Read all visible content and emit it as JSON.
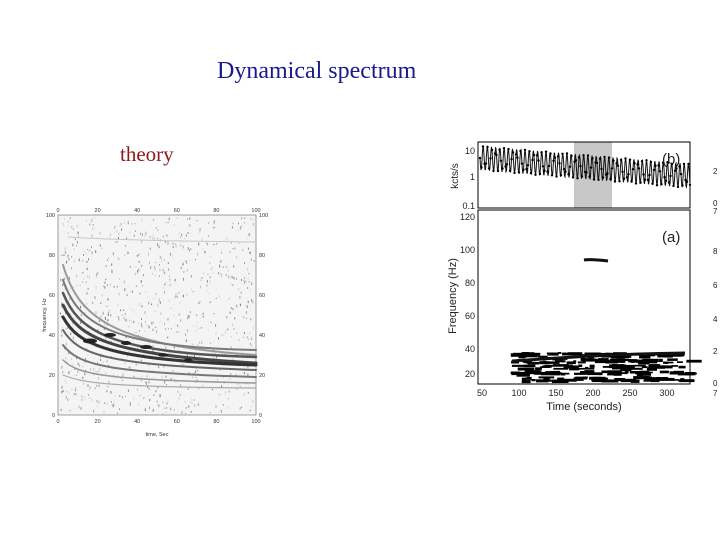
{
  "slide": {
    "title": "Dynamical spectrum",
    "left_caption": "theory"
  },
  "left_figure": {
    "x_ticks_top": [
      "0",
      "20",
      "40",
      "60",
      "80",
      "100"
    ],
    "x_ticks_bottom": [
      "0",
      "20",
      "40",
      "60",
      "80",
      "100"
    ],
    "y_ticks_left": [
      "100",
      "80",
      "60",
      "40",
      "20",
      "0"
    ],
    "y_ticks_right": [
      "100",
      "80",
      "60",
      "40",
      "20",
      "0"
    ],
    "xlabel": "time, Sec",
    "ylabel": "frequency, Hz"
  },
  "right_figure": {
    "top_panel": {
      "label": "(b)",
      "ylabel": "kcts/s",
      "y_ticks": [
        "10",
        "1",
        "0.1"
      ]
    },
    "bottom_panel": {
      "label": "(a)",
      "ylabel": "Frequency (Hz)",
      "y_ticks": [
        "120",
        "100",
        "80",
        "60",
        "40",
        "20"
      ],
      "x_ticks": [
        "50",
        "100",
        "150",
        "200",
        "250",
        "300"
      ],
      "xlabel": "Time (seconds)"
    },
    "edge_ticks": [
      "2",
      "0",
      "7",
      "8",
      "6",
      "4",
      "2",
      "0",
      "7"
    ],
    "colors": {
      "highlight": "#c8c8c8"
    }
  }
}
